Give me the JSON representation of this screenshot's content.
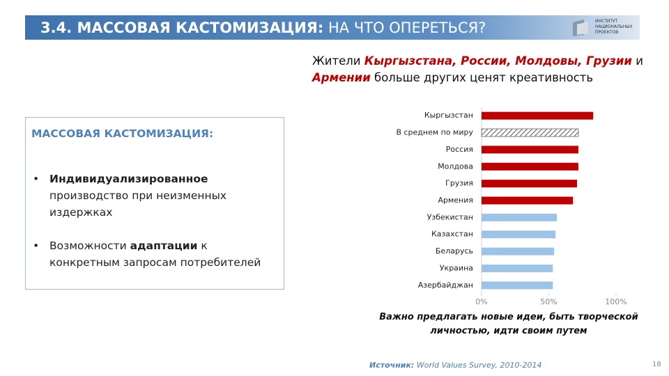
{
  "header": {
    "title_bold": "3.4. МАССОВАЯ КАСТОМИЗАЦИЯ:",
    "title_rest": " НА ЧТО ОПЕРЕТЬСЯ?",
    "logo": [
      "ИНСТИТУТ",
      "НАЦИОНАЛЬНЫХ",
      "ПРОЕКТОВ"
    ]
  },
  "subtitle": [
    [
      {
        "text": "Жители ",
        "em": false
      },
      {
        "text": "Кыргызстана, России, Молдовы, Грузии",
        "em": true
      },
      {
        "text": " и",
        "em": false
      }
    ],
    [
      {
        "text": "Армении",
        "em": true
      },
      {
        "text": " больше других ценят креативность",
        "em": false
      }
    ]
  ],
  "box": {
    "heading": "МАССОВАЯ КАСТОМИЗАЦИЯ:",
    "bullets": [
      [
        {
          "text": "Индивидуализированное",
          "bold": true
        },
        {
          "text": " производство при неизменных издержках",
          "bold": false
        }
      ],
      [
        {
          "text": "Возможности ",
          "bold": false
        },
        {
          "text": "адаптации",
          "bold": true
        },
        {
          "text": " к конкретным запросам потребителей",
          "bold": false
        }
      ]
    ]
  },
  "chart_data": {
    "type": "hbar",
    "categories": [
      "Кыргызстан",
      "В среднем по миру",
      "Россия",
      "Молдова",
      "Грузия",
      "Армения",
      "Узбекистан",
      "Казахстан",
      "Беларусь",
      "Украина",
      "Азербайджан"
    ],
    "values": [
      83,
      72,
      72,
      72,
      71,
      68,
      56,
      55,
      54,
      53,
      53
    ],
    "colors": [
      "#c00000",
      "#7f7f7f",
      "#c00000",
      "#c00000",
      "#c00000",
      "#c00000",
      "#9dc3e6",
      "#9dc3e6",
      "#9dc3e6",
      "#9dc3e6",
      "#9dc3e6"
    ],
    "hatch": [
      false,
      true,
      false,
      false,
      false,
      false,
      false,
      false,
      false,
      false,
      false
    ],
    "xlim": [
      0,
      100
    ],
    "xticks": [
      {
        "value": 0,
        "label": "0%"
      },
      {
        "value": 50,
        "label": "50%"
      },
      {
        "value": 100,
        "label": "100%"
      }
    ],
    "xlabel": "Важно предлагать новые идеи, быть творческой личностью, идти своим путем"
  },
  "footer": {
    "source_label": "Источник:",
    "source": " World Values Survey, 2010-2014",
    "page": 18
  }
}
